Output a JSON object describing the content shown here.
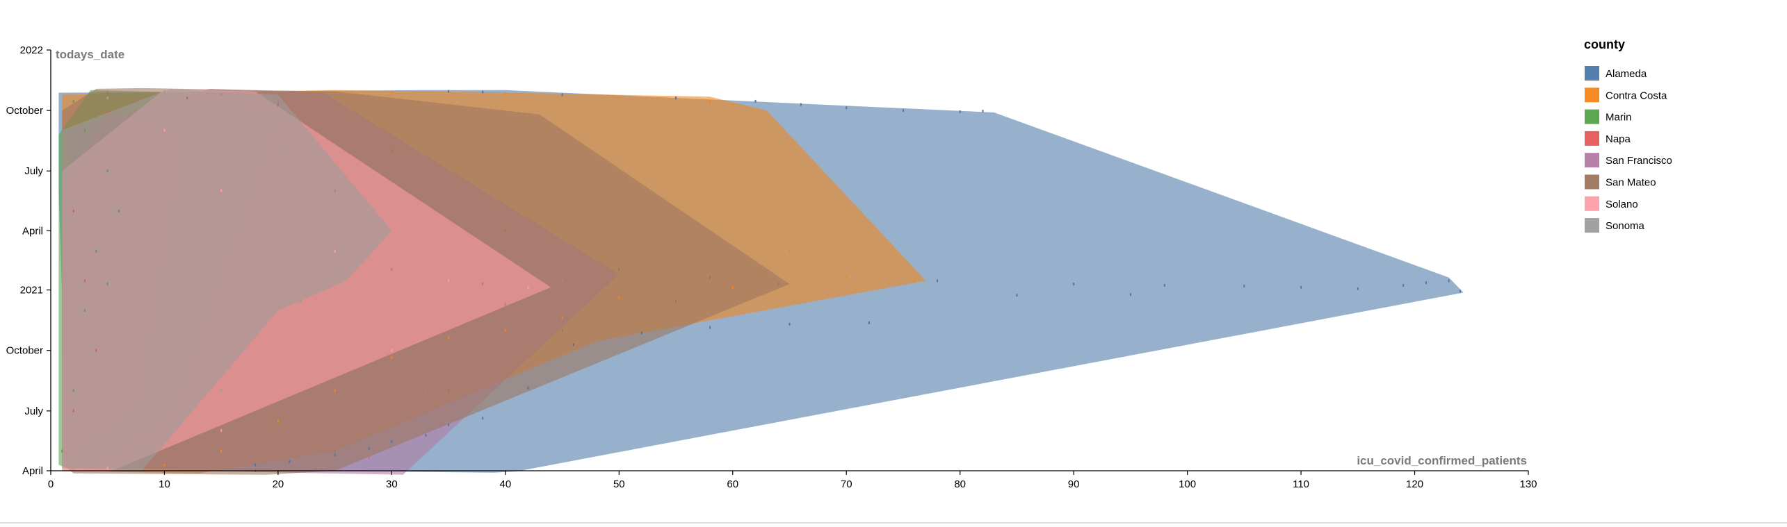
{
  "chart_data": {
    "type": "area",
    "xlabel": "icu_covid_confirmed_patients",
    "ylabel": "todays_date",
    "x_ticks": [
      0,
      10,
      20,
      30,
      40,
      50,
      60,
      70,
      80,
      90,
      100,
      110,
      120,
      130
    ],
    "xlim": [
      0,
      130
    ],
    "ylim": [
      "2020-04-01",
      "2022-01-01"
    ],
    "y_ticks": [
      {
        "date": "2020-04-01",
        "label": "April"
      },
      {
        "date": "2020-07-01",
        "label": "July"
      },
      {
        "date": "2020-10-01",
        "label": "October"
      },
      {
        "date": "2021-01-01",
        "label": "2021"
      },
      {
        "date": "2021-04-01",
        "label": "April"
      },
      {
        "date": "2021-07-01",
        "label": "July"
      },
      {
        "date": "2021-10-01",
        "label": "October"
      },
      {
        "date": "2022-01-01",
        "label": "2022"
      }
    ],
    "grid": false,
    "legend": {
      "title": "county",
      "position": "top-right"
    },
    "series": [
      {
        "name": "Alameda",
        "color": "#4c78a8",
        "hull": [
          [
            0.7,
            "2021-10-28"
          ],
          [
            33,
            "2021-11-01"
          ],
          [
            40,
            "2021-11-01"
          ],
          [
            83,
            "2021-09-28"
          ],
          [
            123,
            "2021-01-20"
          ],
          [
            124.3,
            "2020-12-28"
          ],
          [
            41,
            "2020-03-31"
          ],
          [
            39,
            "2020-03-29"
          ],
          [
            1.5,
            "2020-04-05"
          ],
          [
            0.7,
            "2021-06-01"
          ]
        ],
        "points": [
          [
            35,
            "2021-10-30"
          ],
          [
            38,
            "2021-10-29"
          ],
          [
            45,
            "2021-10-25"
          ],
          [
            55,
            "2021-10-20"
          ],
          [
            62,
            "2021-10-15"
          ],
          [
            66,
            "2021-10-10"
          ],
          [
            70,
            "2021-10-05"
          ],
          [
            75,
            "2021-10-01"
          ],
          [
            80,
            "2021-09-29"
          ],
          [
            82,
            "2021-09-30"
          ],
          [
            78,
            "2021-01-15"
          ],
          [
            90,
            "2021-01-10"
          ],
          [
            98,
            "2021-01-08"
          ],
          [
            105,
            "2021-01-07"
          ],
          [
            110,
            "2021-01-05"
          ],
          [
            115,
            "2021-01-03"
          ],
          [
            119,
            "2021-01-08"
          ],
          [
            121,
            "2021-01-12"
          ],
          [
            123,
            "2021-01-15"
          ],
          [
            124,
            "2020-12-30"
          ],
          [
            95,
            "2020-12-25"
          ],
          [
            85,
            "2020-12-24"
          ],
          [
            72,
            "2020-11-12"
          ],
          [
            65,
            "2020-11-10"
          ],
          [
            58,
            "2020-11-05"
          ],
          [
            52,
            "2020-10-28"
          ],
          [
            46,
            "2020-10-10"
          ],
          [
            42,
            "2020-08-05"
          ],
          [
            38,
            "2020-06-20"
          ],
          [
            35,
            "2020-06-10"
          ],
          [
            33,
            "2020-05-25"
          ],
          [
            30,
            "2020-05-15"
          ],
          [
            28,
            "2020-05-05"
          ],
          [
            25,
            "2020-04-25"
          ],
          [
            21,
            "2020-04-15"
          ],
          [
            18,
            "2020-04-10"
          ]
        ]
      },
      {
        "name": "Contra Costa",
        "color": "#f58518",
        "hull": [
          [
            1,
            "2021-10-25"
          ],
          [
            25,
            "2021-11-01"
          ],
          [
            35,
            "2021-10-30"
          ],
          [
            58,
            "2021-10-22"
          ],
          [
            63,
            "2021-10-01"
          ],
          [
            77,
            "2021-01-15"
          ],
          [
            48,
            "2020-10-15"
          ],
          [
            25,
            "2020-05-01"
          ],
          [
            13,
            "2020-03-28"
          ],
          [
            1,
            "2020-04-01"
          ]
        ],
        "points": [
          [
            30,
            "2021-10-28"
          ],
          [
            40,
            "2021-10-26"
          ],
          [
            50,
            "2021-10-20"
          ],
          [
            58,
            "2021-10-15"
          ],
          [
            60,
            "2021-10-10"
          ],
          [
            65,
            "2021-03-01"
          ],
          [
            70,
            "2021-01-20"
          ],
          [
            76,
            "2021-01-15"
          ],
          [
            60,
            "2021-01-05"
          ],
          [
            50,
            "2020-12-20"
          ],
          [
            45,
            "2020-11-20"
          ],
          [
            40,
            "2020-11-01"
          ],
          [
            35,
            "2020-10-20"
          ],
          [
            30,
            "2020-09-20"
          ],
          [
            25,
            "2020-08-01"
          ],
          [
            20,
            "2020-06-15"
          ],
          [
            15,
            "2020-05-01"
          ],
          [
            10,
            "2020-04-10"
          ]
        ]
      },
      {
        "name": "Marin",
        "color": "#54a24b",
        "hull": [
          [
            0.7,
            "2021-08-25"
          ],
          [
            3.5,
            "2021-11-01"
          ],
          [
            12,
            "2021-10-28"
          ],
          [
            19.5,
            "2021-09-20"
          ],
          [
            10.5,
            "2020-07-01"
          ],
          [
            2,
            "2020-04-01"
          ],
          [
            0.7,
            "2020-04-10"
          ]
        ],
        "points": [
          [
            2,
            "2021-10-15"
          ],
          [
            3,
            "2021-09-01"
          ],
          [
            5,
            "2021-07-01"
          ],
          [
            6,
            "2021-05-01"
          ],
          [
            4,
            "2021-03-01"
          ],
          [
            5,
            "2021-01-10"
          ],
          [
            3,
            "2020-12-01"
          ],
          [
            4,
            "2020-10-01"
          ],
          [
            2,
            "2020-08-01"
          ],
          [
            1,
            "2020-05-01"
          ]
        ]
      },
      {
        "name": "Napa",
        "color": "#e45756",
        "hull": [
          [
            1,
            "2021-06-01"
          ],
          [
            5,
            "2021-10-01"
          ],
          [
            12,
            "2021-09-01"
          ],
          [
            8,
            "2020-07-01"
          ],
          [
            1,
            "2020-04-15"
          ]
        ],
        "points": [
          [
            2,
            "2021-05-01"
          ],
          [
            3,
            "2021-01-15"
          ],
          [
            4,
            "2020-10-01"
          ],
          [
            2,
            "2020-07-01"
          ]
        ]
      },
      {
        "name": "San Francisco",
        "color": "#b279a2",
        "hull": [
          [
            1.5,
            "2021-09-01"
          ],
          [
            14,
            "2021-11-03"
          ],
          [
            24,
            "2021-10-28"
          ],
          [
            50,
            "2021-01-25"
          ],
          [
            31,
            "2020-03-26"
          ],
          [
            24,
            "2020-03-28"
          ],
          [
            2,
            "2020-04-05"
          ]
        ],
        "points": [
          [
            10,
            "2021-10-30"
          ],
          [
            15,
            "2021-10-25"
          ],
          [
            20,
            "2021-10-15"
          ],
          [
            25,
            "2021-06-01"
          ],
          [
            30,
            "2021-02-01"
          ],
          [
            38,
            "2021-01-10"
          ],
          [
            45,
            "2021-01-15"
          ],
          [
            40,
            "2020-12-10"
          ],
          [
            33,
            "2020-08-01"
          ],
          [
            28,
            "2020-04-20"
          ],
          [
            24,
            "2020-04-05"
          ]
        ]
      },
      {
        "name": "San Mateo",
        "color": "#9d755d",
        "hull": [
          [
            1,
            "2021-10-01"
          ],
          [
            4,
            "2021-11-03"
          ],
          [
            8,
            "2021-11-04"
          ],
          [
            25,
            "2021-10-30"
          ],
          [
            43,
            "2021-09-25"
          ],
          [
            65,
            "2021-01-10"
          ],
          [
            25,
            "2020-04-01"
          ],
          [
            19,
            "2020-03-26"
          ],
          [
            2,
            "2020-03-28"
          ],
          [
            1,
            "2020-04-10"
          ]
        ],
        "points": [
          [
            5,
            "2021-10-28"
          ],
          [
            12,
            "2021-10-20"
          ],
          [
            20,
            "2021-10-10"
          ],
          [
            30,
            "2021-08-01"
          ],
          [
            40,
            "2021-04-01"
          ],
          [
            50,
            "2021-02-01"
          ],
          [
            58,
            "2021-01-20"
          ],
          [
            64,
            "2021-01-10"
          ],
          [
            55,
            "2020-12-15"
          ],
          [
            45,
            "2020-11-01"
          ],
          [
            35,
            "2020-08-01"
          ],
          [
            25,
            "2020-05-01"
          ],
          [
            18,
            "2020-04-01"
          ]
        ]
      },
      {
        "name": "Solano",
        "color": "#ff9da6",
        "hull": [
          [
            1,
            "2021-07-01"
          ],
          [
            10,
            "2021-11-02"
          ],
          [
            18,
            "2021-10-30"
          ],
          [
            44,
            "2021-01-05"
          ],
          [
            5,
            "2020-03-29"
          ],
          [
            1,
            "2020-04-01"
          ]
        ],
        "points": [
          [
            5,
            "2021-10-20"
          ],
          [
            10,
            "2021-09-01"
          ],
          [
            15,
            "2021-06-01"
          ],
          [
            25,
            "2021-03-01"
          ],
          [
            35,
            "2021-01-15"
          ],
          [
            42,
            "2021-01-05"
          ],
          [
            30,
            "2020-10-01"
          ],
          [
            15,
            "2020-06-01"
          ],
          [
            5,
            "2020-04-05"
          ]
        ]
      },
      {
        "name": "Sonoma",
        "color": "#9d9d9d",
        "hull": [
          [
            1,
            "2021-09-01"
          ],
          [
            10.5,
            "2021-11-03"
          ],
          [
            20,
            "2021-10-25"
          ],
          [
            30,
            "2021-04-01"
          ],
          [
            26,
            "2021-01-15"
          ],
          [
            20,
            "2020-12-01"
          ],
          [
            8,
            "2020-04-01"
          ],
          [
            1,
            "2020-04-05"
          ]
        ],
        "points": [
          [
            5,
            "2021-10-20"
          ],
          [
            10,
            "2021-10-30"
          ],
          [
            15,
            "2021-10-10"
          ],
          [
            20,
            "2021-08-01"
          ],
          [
            25,
            "2021-02-01"
          ],
          [
            22,
            "2020-12-15"
          ],
          [
            15,
            "2020-08-01"
          ],
          [
            8,
            "2020-05-01"
          ]
        ]
      }
    ]
  }
}
